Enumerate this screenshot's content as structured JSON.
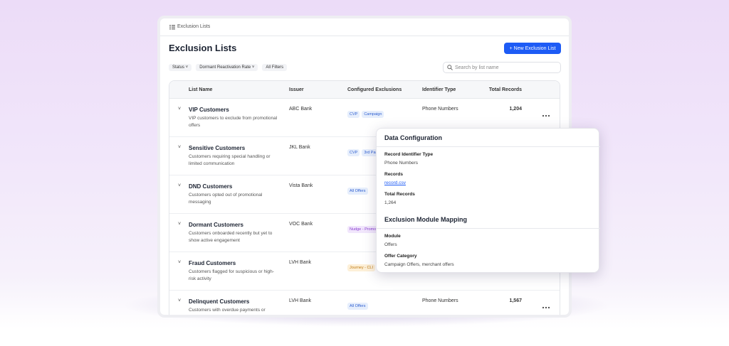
{
  "breadcrumb": "Exclusion Lists",
  "title": "Exclusion Lists",
  "new_button": "+ New Exclusion List",
  "filters": [
    "Status",
    "Dormant Reactivation Rate",
    "All Filters"
  ],
  "search_placeholder": "Search by list name",
  "table": {
    "columns": [
      "List Name",
      "Issuer",
      "Configured Exclusions",
      "Identifier Type",
      "Total Records"
    ],
    "rows": [
      {
        "name": "VIP Customers",
        "description": "VIP customers to exclude from promotional offers",
        "issuer": "ABC Bank",
        "exclusions": [
          "CVP",
          "Campaign"
        ],
        "identifier_type": "Phone Numbers",
        "total_records": "1,204"
      },
      {
        "name": "Sensitive Customers",
        "description": "Customers requiring special handling or limited communication",
        "issuer": "JKL Bank",
        "exclusions": [
          "CVP",
          "3rd Party"
        ]
      },
      {
        "name": "DND Customers",
        "description": "Customers opted out of promotional messaging",
        "issuer": "Vista Bank",
        "exclusions": [
          "All Offers"
        ]
      },
      {
        "name": "Dormant Customers",
        "description": "Customers onboarded recently but yet to show active engagement",
        "issuer": "VOC Bank",
        "exclusions": [
          "Nudge - Promotions"
        ]
      },
      {
        "name": "Fraud Customers",
        "description": "Customers flagged for suspicious or high-risk activity",
        "issuer": "LVH Bank",
        "exclusions": [
          "Journey - CLI"
        ]
      },
      {
        "name": "Delinquent Customers",
        "description": "Customers with overdue payments or missed dues",
        "issuer": "LVH Bank",
        "exclusions": [
          "All Offers"
        ],
        "identifier_type": "Phone Numbers",
        "total_records": "1,567"
      }
    ]
  },
  "popup": {
    "title": "Data Configuration",
    "fields": [
      {
        "label": "Record Identifier Type",
        "value": "Phone Numbers"
      },
      {
        "label": "Records",
        "value": "record.csv"
      },
      {
        "label": "Total Records",
        "value": "1,264"
      }
    ],
    "section_title": "Exclusion Module Mapping",
    "section_fields": [
      {
        "label": "Module",
        "value": "Offers"
      },
      {
        "label": "Offer Category",
        "value": "Campaign Offers, merchant offers"
      }
    ]
  }
}
